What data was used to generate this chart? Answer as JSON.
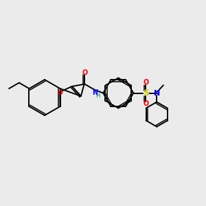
{
  "background_color": "#ebebeb",
  "bond_color": "#000000",
  "oxygen_color": "#ff0000",
  "nitrogen_color": "#0000ff",
  "sulfur_color": "#cccc00",
  "hydrogen_color": "#008080",
  "figsize": [
    3.0,
    3.0
  ],
  "dpi": 100,
  "xlim": [
    0,
    300
  ],
  "ylim": [
    0,
    300
  ]
}
